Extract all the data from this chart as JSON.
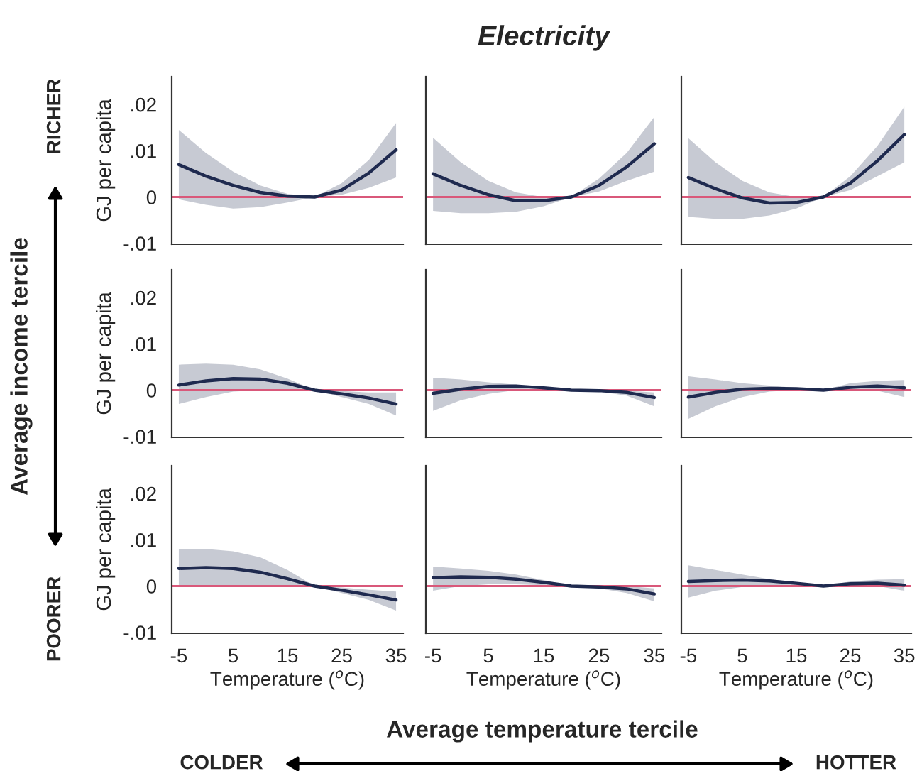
{
  "chart_data": [
    {
      "type": "line",
      "ylabel": "GJ per capita",
      "annotations": [
        "RICHER",
        "Average income tercile",
        "POORER",
        "Average temperature tercile",
        "COLDER",
        "HOTTER"
      ],
      "x": [
        -5,
        0,
        5,
        10,
        15,
        20,
        25,
        30,
        35
      ],
      "xlim": [
        -6.3,
        36.3
      ],
      "ylim": [
        -0.0102,
        0.026
      ],
      "yticks": [
        {
          "value": -0.01,
          "label": "-.01"
        },
        {
          "value": 0,
          "label": "0"
        },
        {
          "value": 0.01,
          "label": ".01"
        },
        {
          "value": 0.02,
          "label": ".02"
        }
      ],
      "tick_labels": "y",
      "ref_lines": [
        {
          "axis": "y",
          "value": 0,
          "color": "#d9587a"
        }
      ],
      "series": [
        {
          "color": "#1f2a4f",
          "values": [
            0.007,
            0.0045,
            0.0025,
            0.001,
            0.0002,
            0,
            0.0015,
            0.0052,
            0.0102
          ],
          "upper": [
            0.0145,
            0.0095,
            0.0055,
            0.0025,
            0.0007,
            0,
            0.003,
            0.008,
            0.016
          ],
          "lower": [
            -0.0005,
            -0.0017,
            -0.0025,
            -0.0022,
            -0.0012,
            0,
            0.0005,
            0.002,
            0.0042
          ]
        }
      ]
    },
    {
      "type": "line",
      "title": "Electricity",
      "x": [
        -5,
        0,
        5,
        10,
        15,
        20,
        25,
        30,
        35
      ],
      "xlim": [
        -6.3,
        36.3
      ],
      "ylim": [
        -0.0102,
        0.026
      ],
      "tick_labels": false,
      "ref_lines": [
        {
          "axis": "y",
          "value": 0,
          "color": "#d9587a"
        }
      ],
      "series": [
        {
          "color": "#1f2a4f",
          "values": [
            0.005,
            0.0025,
            0.0005,
            -0.0008,
            -0.0008,
            0,
            0.0025,
            0.0065,
            0.0115
          ],
          "upper": [
            0.0128,
            0.0075,
            0.0035,
            0.001,
            0,
            0,
            0.004,
            0.0095,
            0.0173
          ],
          "lower": [
            -0.003,
            -0.0035,
            -0.0035,
            -0.0032,
            -0.002,
            0,
            0.0012,
            0.0035,
            0.0055
          ]
        }
      ]
    },
    {
      "type": "line",
      "x": [
        -5,
        0,
        5,
        10,
        15,
        20,
        25,
        30,
        35
      ],
      "xlim": [
        -6.3,
        36.3
      ],
      "ylim": [
        -0.0102,
        0.026
      ],
      "tick_labels": false,
      "ref_lines": [
        {
          "axis": "y",
          "value": 0,
          "color": "#d9587a"
        }
      ],
      "series": [
        {
          "color": "#1f2a4f",
          "values": [
            0.0042,
            0.0018,
            -0.0002,
            -0.0013,
            -0.0012,
            0,
            0.003,
            0.0078,
            0.0135
          ],
          "upper": [
            0.0127,
            0.0075,
            0.0035,
            0.001,
            0,
            0,
            0.0045,
            0.011,
            0.0195
          ],
          "lower": [
            -0.0043,
            -0.0047,
            -0.0047,
            -0.004,
            -0.0025,
            0,
            0.0015,
            0.0045,
            0.0075
          ]
        }
      ]
    },
    {
      "type": "line",
      "ylabel": "GJ per capita",
      "x": [
        -5,
        0,
        5,
        10,
        15,
        20,
        25,
        30,
        35
      ],
      "xlim": [
        -6.3,
        36.3
      ],
      "ylim": [
        -0.0102,
        0.026
      ],
      "yticks": [
        {
          "value": -0.01,
          "label": "-.01"
        },
        {
          "value": 0,
          "label": "0"
        },
        {
          "value": 0.01,
          "label": ".01"
        },
        {
          "value": 0.02,
          "label": ".02"
        }
      ],
      "tick_labels": "y",
      "ref_lines": [
        {
          "axis": "y",
          "value": 0,
          "color": "#d9587a"
        }
      ],
      "series": [
        {
          "color": "#1f2a4f",
          "values": [
            0.0011,
            0.002,
            0.0025,
            0.0024,
            0.0015,
            0,
            -0.0008,
            -0.0017,
            -0.003
          ],
          "upper": [
            0.0055,
            0.0057,
            0.0055,
            0.0045,
            0.0025,
            0,
            -0.0002,
            -0.0005,
            -0.0005
          ],
          "lower": [
            -0.003,
            -0.0015,
            -0.0003,
            0,
            0,
            0,
            -0.0015,
            -0.003,
            -0.0055
          ]
        }
      ]
    },
    {
      "type": "line",
      "x": [
        -5,
        0,
        5,
        10,
        15,
        20,
        25,
        30,
        35
      ],
      "xlim": [
        -6.3,
        36.3
      ],
      "ylim": [
        -0.0102,
        0.026
      ],
      "tick_labels": false,
      "ref_lines": [
        {
          "axis": "y",
          "value": 0,
          "color": "#d9587a"
        }
      ],
      "series": [
        {
          "color": "#1f2a4f",
          "values": [
            -0.0007,
            0.0002,
            0.0008,
            0.0009,
            0.0005,
            0,
            -0.0001,
            -0.0005,
            -0.0016
          ],
          "upper": [
            0.0027,
            0.0023,
            0.0017,
            0.0012,
            0.0006,
            0,
            0.0001,
            -0.0001,
            -0.0005
          ],
          "lower": [
            -0.0045,
            -0.0022,
            -0.0008,
            0,
            0,
            0,
            -0.0003,
            -0.0012,
            -0.0035
          ]
        }
      ]
    },
    {
      "type": "line",
      "x": [
        -5,
        0,
        5,
        10,
        15,
        20,
        25,
        30,
        35
      ],
      "xlim": [
        -6.3,
        36.3
      ],
      "ylim": [
        -0.0102,
        0.026
      ],
      "tick_labels": false,
      "ref_lines": [
        {
          "axis": "y",
          "value": 0,
          "color": "#d9587a"
        }
      ],
      "series": [
        {
          "color": "#1f2a4f",
          "values": [
            -0.0015,
            -0.0005,
            0.0002,
            0.0004,
            0.0003,
            0,
            0.0006,
            0.0009,
            0.0005
          ],
          "upper": [
            0.003,
            0.0023,
            0.0015,
            0.001,
            0.0005,
            0,
            0.0015,
            0.002,
            0.0022
          ],
          "lower": [
            -0.0062,
            -0.0035,
            -0.0015,
            -0.0003,
            0,
            0,
            0,
            -0.0001,
            -0.0015
          ]
        }
      ]
    },
    {
      "type": "line",
      "ylabel": "GJ per capita",
      "xlabel": "Temperature ($^{o}$C)",
      "x": [
        -5,
        0,
        5,
        10,
        15,
        20,
        25,
        30,
        35
      ],
      "xlim": [
        -6.3,
        36.3
      ],
      "ylim": [
        -0.0102,
        0.026
      ],
      "xticks": [
        -5,
        5,
        15,
        25,
        35
      ],
      "yticks": [
        {
          "value": -0.01,
          "label": "-.01"
        },
        {
          "value": 0,
          "label": "0"
        },
        {
          "value": 0.01,
          "label": ".01"
        },
        {
          "value": 0.02,
          "label": ".02"
        }
      ],
      "ref_lines": [
        {
          "axis": "y",
          "value": 0,
          "color": "#d9587a"
        }
      ],
      "series": [
        {
          "color": "#1f2a4f",
          "values": [
            0.0038,
            0.004,
            0.0038,
            0.003,
            0.0016,
            0,
            -0.0009,
            -0.0019,
            -0.003
          ],
          "upper": [
            0.008,
            0.008,
            0.0075,
            0.0062,
            0.0035,
            0,
            -0.0003,
            -0.0008,
            -0.0012
          ],
          "lower": [
            0,
            0,
            0,
            0,
            0,
            0,
            -0.0015,
            -0.003,
            -0.0053
          ]
        }
      ]
    },
    {
      "type": "line",
      "xlabel": "Temperature ($^{o}$C)",
      "x": [
        -5,
        0,
        5,
        10,
        15,
        20,
        25,
        30,
        35
      ],
      "xlim": [
        -6.3,
        36.3
      ],
      "ylim": [
        -0.0102,
        0.026
      ],
      "xticks": [
        -5,
        5,
        15,
        25,
        35
      ],
      "tick_labels": "x",
      "ref_lines": [
        {
          "axis": "y",
          "value": 0,
          "color": "#d9587a"
        }
      ],
      "series": [
        {
          "color": "#1f2a4f",
          "values": [
            0.0018,
            0.002,
            0.0019,
            0.0015,
            0.0008,
            0,
            -0.0002,
            -0.0006,
            -0.0017
          ],
          "upper": [
            0.0042,
            0.0038,
            0.0033,
            0.0025,
            0.0013,
            0,
            0,
            0,
            -0.0005
          ],
          "lower": [
            -0.001,
            0,
            0.0004,
            0.0004,
            0.0002,
            0,
            -0.0005,
            -0.0015,
            -0.0033
          ]
        }
      ]
    },
    {
      "type": "line",
      "xlabel": "Temperature ($^{o}$C)",
      "x": [
        -5,
        0,
        5,
        10,
        15,
        20,
        25,
        30,
        35
      ],
      "xlim": [
        -6.3,
        36.3
      ],
      "ylim": [
        -0.0102,
        0.026
      ],
      "xticks": [
        -5,
        5,
        15,
        25,
        35
      ],
      "tick_labels": "x",
      "ref_lines": [
        {
          "axis": "y",
          "value": 0,
          "color": "#d9587a"
        }
      ],
      "series": [
        {
          "color": "#1f2a4f",
          "values": [
            0.001,
            0.0012,
            0.0013,
            0.0011,
            0.0006,
            0,
            0.0005,
            0.0006,
            0.0002
          ],
          "upper": [
            0.0045,
            0.0035,
            0.0025,
            0.0015,
            0.0008,
            0,
            0.001,
            0.0014,
            0.0015
          ],
          "lower": [
            -0.0025,
            -0.001,
            -0.0002,
            0.0002,
            0.0002,
            0,
            0.0001,
            0,
            -0.001
          ]
        }
      ]
    }
  ]
}
